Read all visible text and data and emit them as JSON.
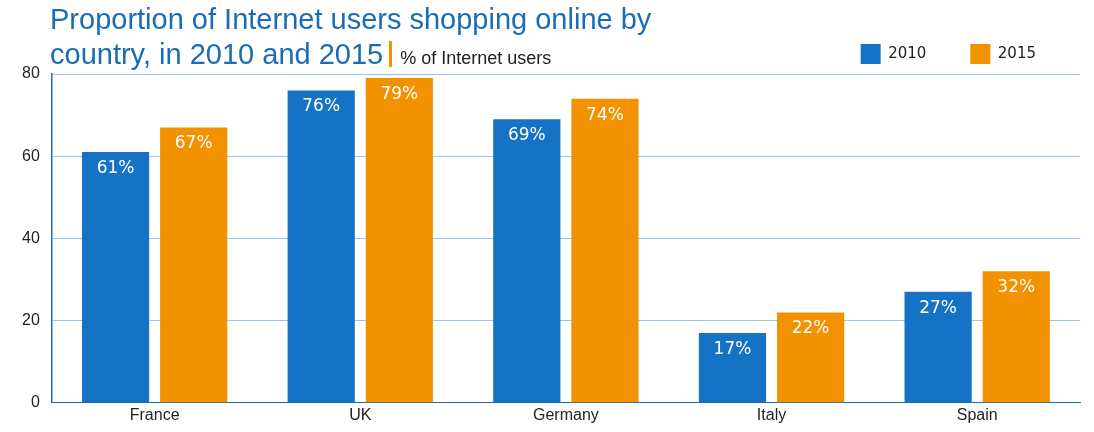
{
  "chart_data": {
    "type": "bar",
    "title": "Proportion of Internet users shopping online by country, in 2010 and 2015",
    "subtitle": "% of Internet users",
    "categories": [
      "France",
      "UK",
      "Germany",
      "Italy",
      "Spain"
    ],
    "series": [
      {
        "name": "2010",
        "color": "#1672c4",
        "values": [
          61,
          76,
          69,
          17,
          27
        ],
        "value_labels": [
          "61%",
          "76%",
          "69%",
          "17%",
          "27%"
        ]
      },
      {
        "name": "2015",
        "color": "#f39200",
        "values": [
          67,
          79,
          74,
          22,
          32
        ],
        "value_labels": [
          "67%",
          "79%",
          "74%",
          "22%",
          "32%"
        ]
      }
    ],
    "ylim": [
      0,
      80
    ],
    "yticks": [
      0,
      20,
      40,
      60,
      80
    ],
    "grid": "y",
    "legend": "top right"
  }
}
